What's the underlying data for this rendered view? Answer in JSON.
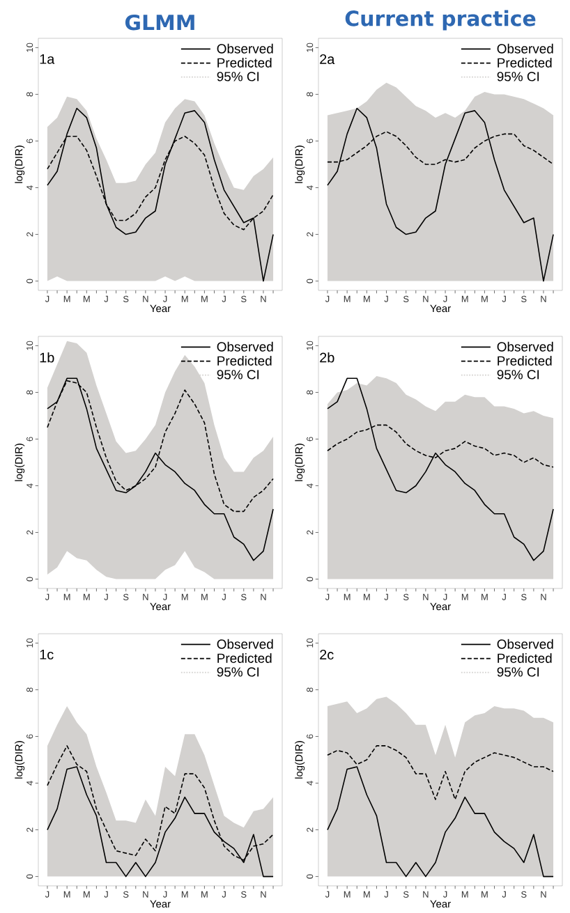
{
  "chart_data": [
    {
      "type": "line",
      "title": "GLMM",
      "xlabel": "Year",
      "ylabel": "log(DIR)",
      "annotations": [
        "1a"
      ],
      "legend": "top right",
      "ylim": [
        -0.4,
        10.4
      ],
      "yticks": [
        0,
        2,
        4,
        6,
        8,
        10
      ],
      "categories": [
        "J",
        null,
        "M",
        null,
        "M",
        null,
        "J",
        null,
        "S",
        null,
        "N",
        null,
        "J",
        null,
        "M",
        null,
        "M",
        null,
        "J",
        null,
        "S",
        null,
        "N",
        null
      ],
      "series": [
        {
          "name": "95% CI",
          "type": "area",
          "color": "#d3d1cf",
          "line_style": "dotted",
          "values": [
            null,
            null,
            null,
            null,
            null,
            null,
            null,
            null,
            null,
            null,
            null,
            null,
            null,
            null,
            null,
            null,
            null,
            null,
            null,
            null,
            null,
            null,
            null,
            null
          ],
          "upper": [
            6.6,
            7.0,
            7.9,
            7.8,
            7.3,
            6.1,
            5.2,
            4.2,
            4.2,
            4.3,
            5.0,
            5.5,
            6.8,
            7.4,
            7.8,
            7.7,
            7.1,
            5.9,
            4.9,
            4.0,
            3.9,
            4.5,
            4.8,
            5.3
          ],
          "lower": [
            0,
            0.2,
            0,
            0,
            0,
            0,
            0,
            0,
            0,
            0,
            0,
            0,
            0.2,
            0,
            0.2,
            0,
            0,
            0,
            0,
            0,
            0,
            0,
            0,
            0
          ]
        },
        {
          "name": "Observed",
          "color": "#000000",
          "line_style": "solid",
          "values": [
            4.1,
            4.7,
            6.3,
            7.4,
            7.0,
            5.7,
            3.3,
            2.3,
            2.0,
            2.1,
            2.7,
            3.0,
            5.0,
            6.1,
            7.2,
            7.3,
            6.8,
            5.2,
            3.9,
            3.2,
            2.5,
            2.7,
            0,
            2.0
          ]
        },
        {
          "name": "Predicted",
          "color": "#000000",
          "line_style": "dashed",
          "values": [
            4.8,
            5.5,
            6.2,
            6.2,
            5.6,
            4.5,
            3.3,
            2.6,
            2.6,
            2.9,
            3.6,
            4.0,
            5.2,
            6.0,
            6.2,
            5.9,
            5.4,
            4.0,
            2.9,
            2.4,
            2.2,
            2.7,
            3.0,
            3.7
          ]
        }
      ]
    },
    {
      "type": "line",
      "title": "Current practice",
      "xlabel": "Year",
      "ylabel": "log(DIR)",
      "annotations": [
        "2a"
      ],
      "legend": "top right",
      "ylim": [
        -0.4,
        10.4
      ],
      "yticks": [
        0,
        2,
        4,
        6,
        8,
        10
      ],
      "categories": [
        "J",
        null,
        "M",
        null,
        "M",
        null,
        "J",
        null,
        "S",
        null,
        "N",
        null,
        "J",
        null,
        "M",
        null,
        "M",
        null,
        "J",
        null,
        "S",
        null,
        "N",
        null
      ],
      "series": [
        {
          "name": "95% CI",
          "type": "area",
          "color": "#d3d1cf",
          "line_style": "dotted",
          "values": [
            null,
            null,
            null,
            null,
            null,
            null,
            null,
            null,
            null,
            null,
            null,
            null,
            null,
            null,
            null,
            null,
            null,
            null,
            null,
            null,
            null,
            null,
            null,
            null
          ],
          "upper": [
            7.1,
            7.2,
            7.3,
            7.4,
            7.7,
            8.2,
            8.5,
            8.3,
            7.9,
            7.5,
            7.3,
            7.0,
            7.2,
            7.0,
            7.3,
            7.9,
            8.1,
            8.0,
            8.0,
            7.9,
            7.8,
            7.6,
            7.4,
            7.1
          ],
          "lower": [
            0,
            0,
            0,
            0,
            0,
            0,
            0,
            0,
            0,
            0,
            0,
            0,
            0,
            0,
            0,
            0,
            0,
            0,
            0,
            0,
            0,
            0,
            0,
            0
          ]
        },
        {
          "name": "Observed",
          "color": "#000000",
          "line_style": "solid",
          "values": [
            4.1,
            4.7,
            6.3,
            7.4,
            7.0,
            5.7,
            3.3,
            2.3,
            2.0,
            2.1,
            2.7,
            3.0,
            5.0,
            6.1,
            7.2,
            7.3,
            6.8,
            5.2,
            3.9,
            3.2,
            2.5,
            2.7,
            0,
            2.0
          ]
        },
        {
          "name": "Predicted",
          "color": "#000000",
          "line_style": "dashed",
          "values": [
            5.1,
            5.1,
            5.2,
            5.5,
            5.8,
            6.2,
            6.4,
            6.2,
            5.8,
            5.3,
            5.0,
            5.0,
            5.2,
            5.1,
            5.2,
            5.7,
            6.0,
            6.2,
            6.3,
            6.3,
            5.8,
            5.6,
            5.3,
            5.0
          ]
        }
      ]
    },
    {
      "type": "line",
      "xlabel": "Year",
      "ylabel": "log(DIR)",
      "annotations": [
        "1b"
      ],
      "legend": "top right",
      "ylim": [
        -0.4,
        10.4
      ],
      "yticks": [
        0,
        2,
        4,
        6,
        8,
        10
      ],
      "categories": [
        "J",
        null,
        "M",
        null,
        "M",
        null,
        "J",
        null,
        "S",
        null,
        "N",
        null,
        "J",
        null,
        "M",
        null,
        "M",
        null,
        "J",
        null,
        "S",
        null,
        "N",
        null
      ],
      "series": [
        {
          "name": "95% CI",
          "type": "area",
          "color": "#d3d1cf",
          "line_style": "dotted",
          "values": [
            null,
            null,
            null,
            null,
            null,
            null,
            null,
            null,
            null,
            null,
            null,
            null,
            null,
            null,
            null,
            null,
            null,
            null,
            null,
            null,
            null,
            null,
            null,
            null
          ],
          "upper": [
            8.2,
            9.2,
            10.2,
            10.1,
            9.7,
            8.3,
            7.1,
            5.9,
            5.4,
            5.5,
            6.0,
            6.6,
            8.0,
            8.9,
            9.6,
            9.1,
            8.4,
            6.6,
            5.2,
            4.6,
            4.6,
            5.2,
            5.5,
            6.1
          ],
          "lower": [
            0.2,
            0.5,
            1.2,
            0.9,
            0.8,
            0.4,
            0.1,
            0,
            0,
            0,
            0,
            0,
            0.4,
            0.6,
            1.2,
            0.5,
            0.3,
            0,
            0,
            0,
            0,
            0,
            0,
            0
          ]
        },
        {
          "name": "Observed",
          "color": "#000000",
          "line_style": "solid",
          "values": [
            7.3,
            7.6,
            8.6,
            8.6,
            7.3,
            5.6,
            4.7,
            3.8,
            3.7,
            4.0,
            4.6,
            5.4,
            4.9,
            4.6,
            4.1,
            3.8,
            3.2,
            2.8,
            2.8,
            1.8,
            1.5,
            0.8,
            1.2,
            3.0
          ]
        },
        {
          "name": "Predicted",
          "color": "#000000",
          "line_style": "dashed",
          "values": [
            6.5,
            7.6,
            8.5,
            8.4,
            8.0,
            6.5,
            5.2,
            4.2,
            3.8,
            4.0,
            4.3,
            4.8,
            6.3,
            7.1,
            8.1,
            7.5,
            6.7,
            4.5,
            3.2,
            2.9,
            2.9,
            3.5,
            3.8,
            4.3
          ]
        }
      ]
    },
    {
      "type": "line",
      "xlabel": "Year",
      "ylabel": "log(DIR)",
      "annotations": [
        "2b"
      ],
      "legend": "top right",
      "ylim": [
        -0.4,
        10.4
      ],
      "yticks": [
        0,
        2,
        4,
        6,
        8,
        10
      ],
      "categories": [
        "J",
        null,
        "M",
        null,
        "M",
        null,
        "J",
        null,
        "S",
        null,
        "N",
        null,
        "J",
        null,
        "M",
        null,
        "M",
        null,
        "J",
        null,
        "S",
        null,
        "N",
        null
      ],
      "series": [
        {
          "name": "95% CI",
          "type": "area",
          "color": "#d3d1cf",
          "line_style": "dotted",
          "values": [
            null,
            null,
            null,
            null,
            null,
            null,
            null,
            null,
            null,
            null,
            null,
            null,
            null,
            null,
            null,
            null,
            null,
            null,
            null,
            null,
            null,
            null,
            null,
            null
          ],
          "upper": [
            7.5,
            8.0,
            8.1,
            8.4,
            8.3,
            8.7,
            8.6,
            8.4,
            7.9,
            7.7,
            7.4,
            7.2,
            7.6,
            7.6,
            7.9,
            7.8,
            7.8,
            7.4,
            7.4,
            7.3,
            7.1,
            7.2,
            7.0,
            6.9
          ],
          "lower": [
            0,
            0,
            0,
            0,
            0,
            0,
            0,
            0,
            0,
            0,
            0,
            0,
            0,
            0,
            0,
            0,
            0,
            0,
            0,
            0,
            0,
            0,
            0,
            0
          ]
        },
        {
          "name": "Observed",
          "color": "#000000",
          "line_style": "solid",
          "values": [
            7.3,
            7.6,
            8.6,
            8.6,
            7.3,
            5.6,
            4.7,
            3.8,
            3.7,
            4.0,
            4.6,
            5.4,
            4.9,
            4.6,
            4.1,
            3.8,
            3.2,
            2.8,
            2.8,
            1.8,
            1.5,
            0.8,
            1.2,
            3.0
          ]
        },
        {
          "name": "Predicted",
          "color": "#000000",
          "line_style": "dashed",
          "values": [
            5.5,
            5.8,
            6.0,
            6.3,
            6.4,
            6.6,
            6.6,
            6.3,
            5.8,
            5.5,
            5.3,
            5.2,
            5.5,
            5.6,
            5.9,
            5.7,
            5.6,
            5.3,
            5.4,
            5.3,
            5.0,
            5.2,
            4.9,
            4.8
          ]
        }
      ]
    },
    {
      "type": "line",
      "xlabel": "Year",
      "ylabel": "log(DIR)",
      "annotations": [
        "1c"
      ],
      "legend": "top right",
      "ylim": [
        -0.4,
        10.4
      ],
      "yticks": [
        0,
        2,
        4,
        6,
        8,
        10
      ],
      "categories": [
        "J",
        null,
        "M",
        null,
        "M",
        null,
        "J",
        null,
        "S",
        null,
        "N",
        null,
        "J",
        null,
        "M",
        null,
        "M",
        null,
        "J",
        null,
        "S",
        null,
        "N",
        null
      ],
      "series": [
        {
          "name": "95% CI",
          "type": "area",
          "color": "#d3d1cf",
          "line_style": "dotted",
          "values": [
            null,
            null,
            null,
            null,
            null,
            null,
            null,
            null,
            null,
            null,
            null,
            null,
            null,
            null,
            null,
            null,
            null,
            null,
            null,
            null,
            null,
            null,
            null,
            null
          ],
          "upper": [
            5.6,
            6.5,
            7.3,
            6.6,
            6.1,
            4.7,
            3.6,
            2.4,
            2.4,
            2.3,
            3.3,
            2.6,
            4.7,
            4.3,
            6.1,
            6.1,
            5.2,
            3.9,
            2.6,
            2.3,
            2.1,
            2.8,
            2.9,
            3.4
          ],
          "lower": [
            0,
            0,
            0,
            0,
            0,
            0,
            0,
            0,
            0,
            0,
            0,
            0,
            0,
            0,
            0,
            0,
            0,
            0,
            0,
            0,
            0,
            0,
            0,
            0
          ]
        },
        {
          "name": "Observed",
          "color": "#000000",
          "line_style": "solid",
          "values": [
            2.0,
            2.9,
            4.6,
            4.7,
            3.5,
            2.6,
            0.6,
            0.6,
            0,
            0.6,
            0,
            0.6,
            1.9,
            2.5,
            3.4,
            2.7,
            2.7,
            1.9,
            1.5,
            1.2,
            0.6,
            1.8,
            0,
            0
          ]
        },
        {
          "name": "Predicted",
          "color": "#000000",
          "line_style": "dashed",
          "values": [
            3.9,
            4.8,
            5.6,
            4.8,
            4.5,
            2.9,
            2.0,
            1.1,
            1.0,
            0.9,
            1.6,
            1.1,
            3.0,
            2.7,
            4.4,
            4.4,
            3.8,
            2.4,
            1.3,
            0.9,
            0.7,
            1.3,
            1.4,
            1.8
          ]
        }
      ]
    },
    {
      "type": "line",
      "xlabel": "Year",
      "ylabel": "log(DIR)",
      "annotations": [
        "2c"
      ],
      "legend": "top right",
      "ylim": [
        -0.4,
        10.4
      ],
      "yticks": [
        0,
        2,
        4,
        6,
        8,
        10
      ],
      "categories": [
        "J",
        null,
        "M",
        null,
        "M",
        null,
        "J",
        null,
        "S",
        null,
        "N",
        null,
        "J",
        null,
        "M",
        null,
        "M",
        null,
        "J",
        null,
        "S",
        null,
        "N",
        null
      ],
      "series": [
        {
          "name": "95% CI",
          "type": "area",
          "color": "#d3d1cf",
          "line_style": "dotted",
          "values": [
            null,
            null,
            null,
            null,
            null,
            null,
            null,
            null,
            null,
            null,
            null,
            null,
            null,
            null,
            null,
            null,
            null,
            null,
            null,
            null,
            null,
            null,
            null,
            null
          ],
          "upper": [
            7.3,
            7.4,
            7.5,
            7.0,
            7.2,
            7.6,
            7.7,
            7.4,
            7.0,
            6.5,
            6.5,
            5.2,
            6.5,
            5.1,
            6.6,
            6.9,
            7.0,
            7.3,
            7.2,
            7.2,
            7.1,
            6.8,
            6.8,
            6.6
          ],
          "lower": [
            0,
            0,
            0,
            0,
            0,
            0,
            0,
            0,
            0,
            0,
            0,
            0,
            0,
            0,
            0,
            0,
            0,
            0,
            0,
            0,
            0,
            0,
            0,
            0
          ]
        },
        {
          "name": "Observed",
          "color": "#000000",
          "line_style": "solid",
          "values": [
            2.0,
            2.9,
            4.6,
            4.7,
            3.5,
            2.6,
            0.6,
            0.6,
            0,
            0.6,
            0,
            0.6,
            1.9,
            2.5,
            3.4,
            2.7,
            2.7,
            1.9,
            1.5,
            1.2,
            0.6,
            1.8,
            0,
            0
          ]
        },
        {
          "name": "Predicted",
          "color": "#000000",
          "line_style": "dashed",
          "values": [
            5.2,
            5.4,
            5.3,
            4.8,
            5.0,
            5.6,
            5.6,
            5.4,
            5.1,
            4.4,
            4.4,
            3.3,
            4.5,
            3.3,
            4.5,
            4.9,
            5.1,
            5.3,
            5.2,
            5.1,
            4.9,
            4.7,
            4.7,
            4.5
          ]
        }
      ]
    }
  ]
}
